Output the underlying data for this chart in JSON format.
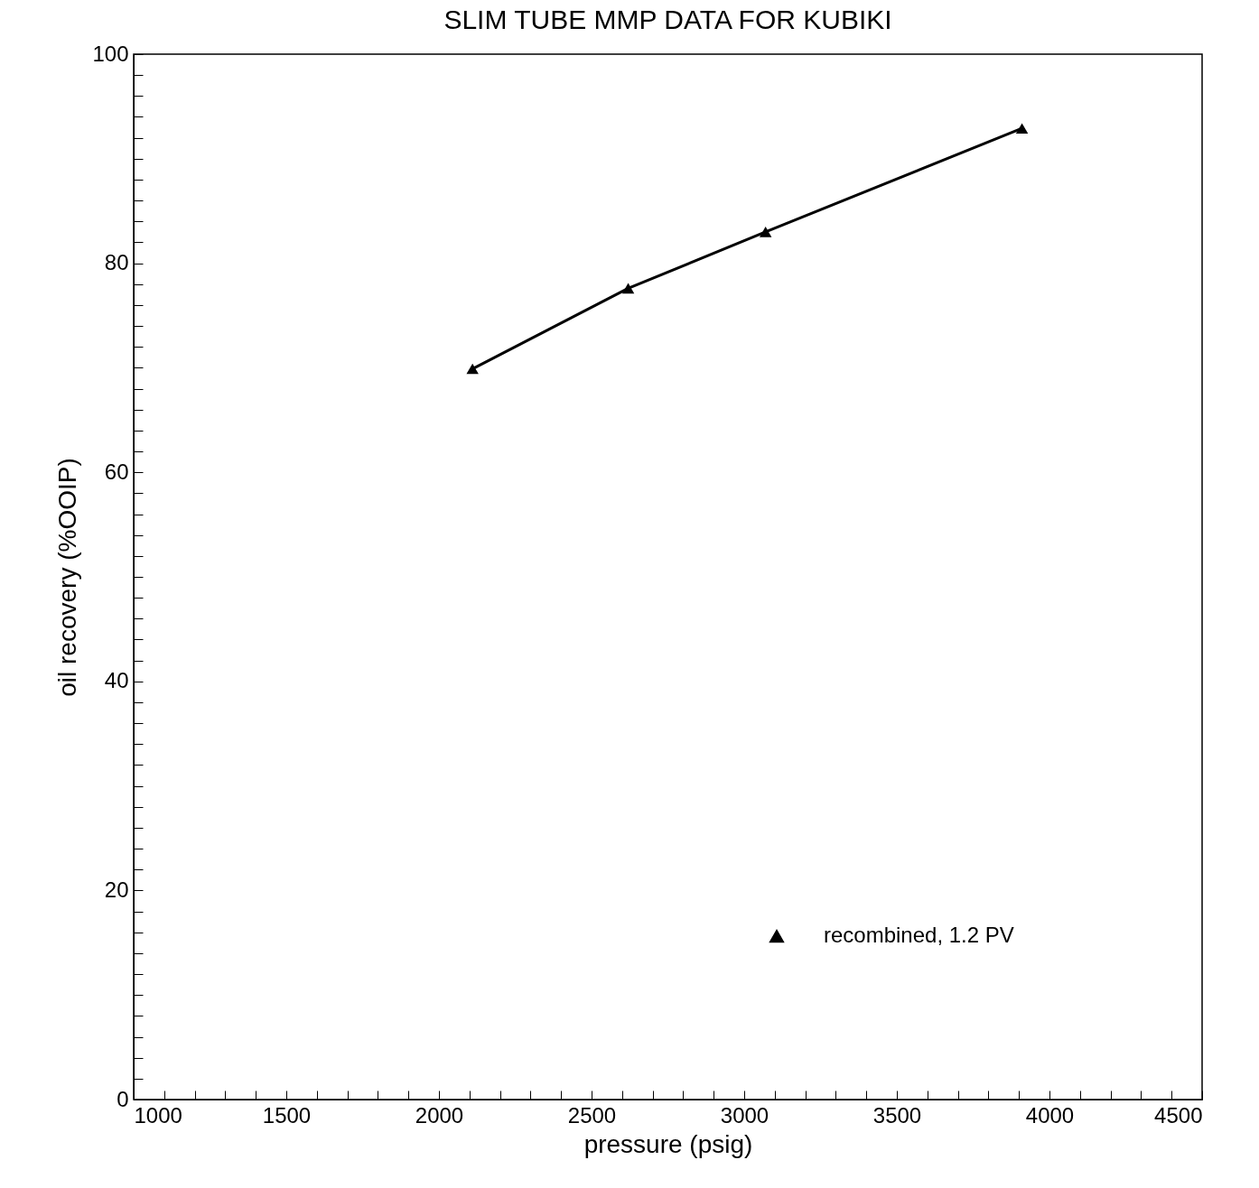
{
  "chart_data": {
    "type": "line",
    "title": "SLIM TUBE MMP DATA FOR KUBIKI",
    "xlabel": "pressure (psig)",
    "ylabel": "oil recovery (%OOIP)",
    "x": [
      2110,
      2620,
      3070,
      3910
    ],
    "series": [
      {
        "name": "recombined, 1.2 PV",
        "color": "#000000",
        "values": [
          69.9,
          77.6,
          83.0,
          92.9
        ]
      }
    ],
    "xlim": [
      1000,
      4500
    ],
    "ylim": [
      0,
      100
    ],
    "xticks": [
      1000,
      {
        "value": 1100,
        "label": null
      },
      {
        "value": 1200,
        "label": null
      },
      {
        "value": 1300,
        "label": null
      },
      {
        "value": 1400,
        "label": null
      },
      1500,
      {
        "value": 1600,
        "label": null
      },
      {
        "value": 1700,
        "label": null
      },
      {
        "value": 1800,
        "label": null
      },
      {
        "value": 1900,
        "label": null
      },
      2000,
      {
        "value": 2100,
        "label": null
      },
      {
        "value": 2200,
        "label": null
      },
      {
        "value": 2300,
        "label": null
      },
      {
        "value": 2400,
        "label": null
      },
      2500,
      {
        "value": 2600,
        "label": null
      },
      {
        "value": 2700,
        "label": null
      },
      {
        "value": 2800,
        "label": null
      },
      {
        "value": 2900,
        "label": null
      },
      3000,
      {
        "value": 3100,
        "label": null
      },
      {
        "value": 3200,
        "label": null
      },
      {
        "value": 3300,
        "label": null
      },
      {
        "value": 3400,
        "label": null
      },
      3500,
      {
        "value": 3600,
        "label": null
      },
      {
        "value": 3700,
        "label": null
      },
      {
        "value": 3800,
        "label": null
      },
      {
        "value": 3900,
        "label": null
      },
      4000,
      {
        "value": 4100,
        "label": null
      },
      {
        "value": 4200,
        "label": null
      },
      {
        "value": 4300,
        "label": null
      },
      {
        "value": 4400,
        "label": null
      },
      4500
    ],
    "yticks": [
      0,
      {
        "value": 2,
        "label": null
      },
      {
        "value": 4,
        "label": null
      },
      {
        "value": 6,
        "label": null
      },
      {
        "value": 8,
        "label": null
      },
      {
        "value": 10,
        "label": null
      },
      {
        "value": 12,
        "label": null
      },
      {
        "value": 14,
        "label": null
      },
      {
        "value": 16,
        "label": null
      },
      {
        "value": 18,
        "label": null
      },
      20,
      {
        "value": 22,
        "label": null
      },
      {
        "value": 24,
        "label": null
      },
      {
        "value": 26,
        "label": null
      },
      {
        "value": 28,
        "label": null
      },
      {
        "value": 30,
        "label": null
      },
      {
        "value": 32,
        "label": null
      },
      {
        "value": 34,
        "label": null
      },
      {
        "value": 36,
        "label": null
      },
      {
        "value": 38,
        "label": null
      },
      40,
      {
        "value": 42,
        "label": null
      },
      {
        "value": 44,
        "label": null
      },
      {
        "value": 46,
        "label": null
      },
      {
        "value": 48,
        "label": null
      },
      {
        "value": 50,
        "label": null
      },
      {
        "value": 52,
        "label": null
      },
      {
        "value": 54,
        "label": null
      },
      {
        "value": 56,
        "label": null
      },
      {
        "value": 58,
        "label": null
      },
      60,
      {
        "value": 62,
        "label": null
      },
      {
        "value": 64,
        "label": null
      },
      {
        "value": 66,
        "label": null
      },
      {
        "value": 68,
        "label": null
      },
      {
        "value": 70,
        "label": null
      },
      {
        "value": 72,
        "label": null
      },
      {
        "value": 74,
        "label": null
      },
      {
        "value": 76,
        "label": null
      },
      {
        "value": 78,
        "label": null
      },
      80,
      {
        "value": 82,
        "label": null
      },
      {
        "value": 84,
        "label": null
      },
      {
        "value": 86,
        "label": null
      },
      {
        "value": 88,
        "label": null
      },
      {
        "value": 90,
        "label": null
      },
      {
        "value": 92,
        "label": null
      },
      {
        "value": 94,
        "label": null
      },
      {
        "value": 96,
        "label": null
      },
      {
        "value": 98,
        "label": null
      },
      100
    ],
    "grid": false,
    "legend": "bottom right",
    "marker": "triangle",
    "line_style": "solid"
  }
}
